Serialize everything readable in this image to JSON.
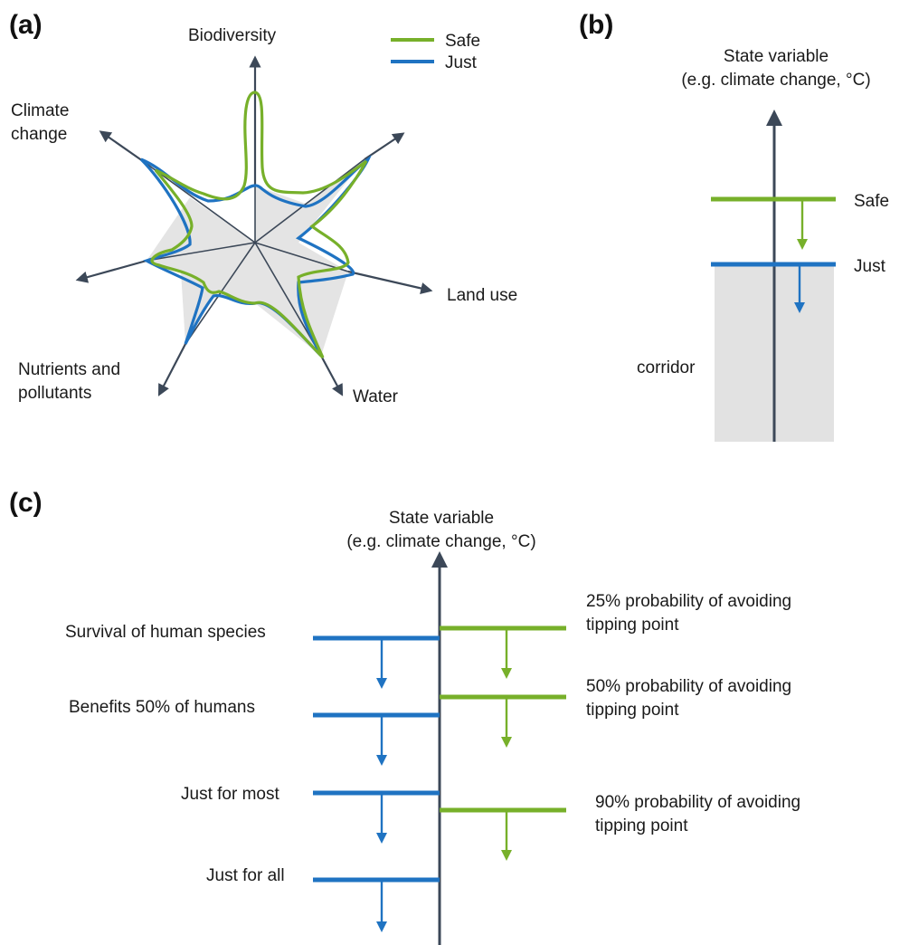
{
  "colors": {
    "safe": "#77b02a",
    "just": "#1f73c2",
    "axis": "#3c4858",
    "corridor": "#e2e2e2",
    "star_fill": "#e4e4e4"
  },
  "panel_a": {
    "label": "(a)",
    "legend": {
      "safe": "Safe",
      "just": "Just"
    },
    "axes": {
      "biodiversity": "Biodiversity",
      "climate_line1": "Climate",
      "climate_line2": "change",
      "land_use": "Land use",
      "water": "Water",
      "nutrients_line1": "Nutrients and",
      "nutrients_line2": "pollutants"
    }
  },
  "panel_b": {
    "label": "(b)",
    "title_line1": "State variable",
    "title_line2": "(e.g. climate change, °C)",
    "safe": "Safe",
    "just": "Just",
    "corridor": "corridor"
  },
  "panel_c": {
    "label": "(c)",
    "title_line1": "State variable",
    "title_line2": "(e.g. climate change, °C)",
    "just_levels": [
      "Survival of human species",
      "Benefits 50% of humans",
      "Just for most",
      "Just for all"
    ],
    "safe_levels": [
      {
        "line1": "25% probability of avoiding",
        "line2": "tipping point"
      },
      {
        "line1": "50% probability of avoiding",
        "line2": "tipping point"
      },
      {
        "line1": "90% probability of avoiding",
        "line2": "tipping point"
      }
    ]
  }
}
